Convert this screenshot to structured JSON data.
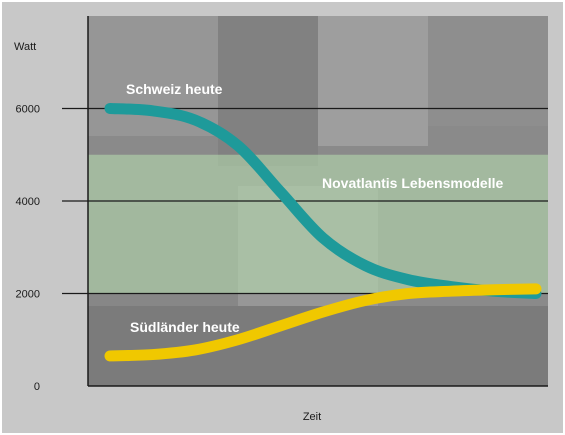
{
  "chart_data": {
    "type": "line",
    "xlabel": "Zeit",
    "ylabel": "Watt",
    "ylim": [
      0,
      8000
    ],
    "yticks": [
      0,
      2000,
      4000,
      6000
    ],
    "grid": true,
    "band": {
      "label": "Novatlantis Lebensmodelle",
      "range": [
        2000,
        5000
      ],
      "color": "#b8e0b0"
    },
    "x": [
      0,
      1,
      2,
      3,
      4,
      5,
      6,
      7,
      8,
      9,
      10
    ],
    "series": [
      {
        "name": "Schweiz heute",
        "color": "#1e9a9a",
        "values": [
          6000,
          5950,
          5750,
          5200,
          4200,
          3200,
          2600,
          2300,
          2150,
          2050,
          2000
        ]
      },
      {
        "name": "Südländer heute",
        "color": "#f0c800",
        "values": [
          650,
          680,
          780,
          1000,
          1300,
          1600,
          1850,
          2000,
          2050,
          2080,
          2100
        ]
      }
    ]
  },
  "colors": {
    "frame": "#c8c8c8",
    "plot_bg": "#8a8a8a",
    "gridline": "#1a1a1a"
  }
}
